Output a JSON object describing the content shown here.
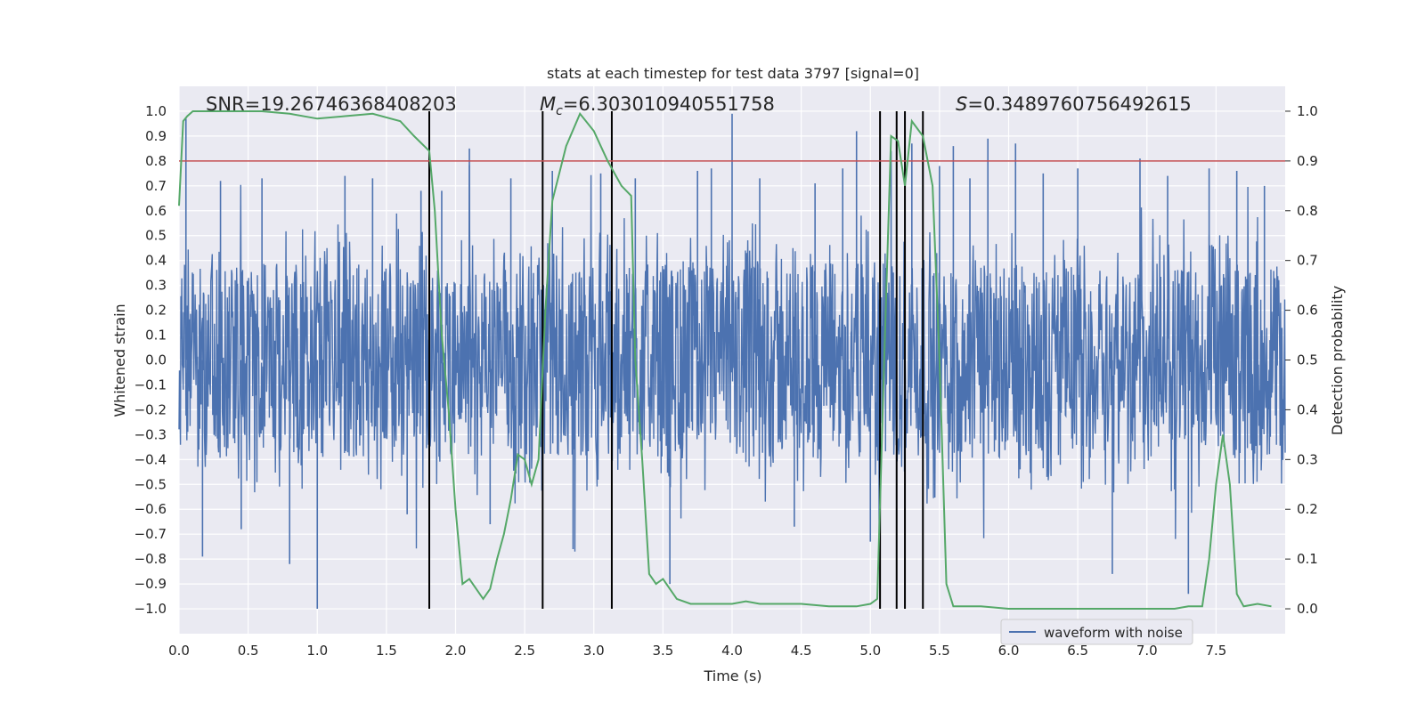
{
  "chart_data": {
    "type": "line",
    "title": "stats at each timestep for test data 3797 [signal=0]",
    "xlabel": "Time (s)",
    "ylabel_left": "Whitened strain",
    "ylabel_right": "Detection probability",
    "xlim": [
      0,
      8.0
    ],
    "ylim_left": [
      -1.1,
      1.1
    ],
    "ylim_right": [
      -0.05,
      1.05
    ],
    "x_ticks": [
      "0.0",
      "0.5",
      "1.0",
      "1.5",
      "2.0",
      "2.5",
      "3.0",
      "3.5",
      "4.0",
      "4.5",
      "5.0",
      "5.5",
      "6.0",
      "6.5",
      "7.0",
      "7.5"
    ],
    "y_ticks_left": [
      "1.0",
      "0.9",
      "0.8",
      "0.7",
      "0.6",
      "0.5",
      "0.4",
      "0.3",
      "0.2",
      "0.1",
      "0.0",
      "-0.1",
      "-0.2",
      "-0.3",
      "-0.4",
      "-0.5",
      "-0.6",
      "-0.7",
      "-0.8",
      "-0.9",
      "-1.0"
    ],
    "y_ticks_right": [
      "1.0",
      "0.9",
      "0.8",
      "0.7",
      "0.6",
      "0.5",
      "0.4",
      "0.3",
      "0.2",
      "0.1",
      "0.0"
    ],
    "annotations": {
      "snr": "SNR=19.26746368408203",
      "mc_symbol": "M",
      "mc_sub": "c",
      "mc_value": "=6.303010940551758",
      "s_symbol": "S",
      "s_value": "=0.3489760756492615"
    },
    "threshold": {
      "value": 0.9,
      "axis": "right",
      "color": "#c44e52"
    },
    "vertical_markers": [
      1.81,
      2.63,
      3.13,
      5.07,
      5.19,
      5.25,
      5.38
    ],
    "waveform": {
      "name": "waveform with noise",
      "color": "#4c72b0",
      "noise_band": 0.39,
      "peak_times": [
        0.05,
        0.17,
        0.3,
        0.45,
        0.6,
        0.8,
        1.0,
        1.2,
        1.4,
        1.65,
        1.75,
        1.9,
        2.1,
        2.25,
        2.4,
        2.7,
        2.85,
        3.05,
        3.3,
        3.55,
        3.75,
        3.85,
        4.0,
        4.2,
        4.45,
        4.6,
        4.8,
        4.9,
        5.0,
        5.15,
        5.3,
        5.5,
        5.6,
        5.72,
        5.85,
        6.05,
        6.25,
        6.5,
        6.75,
        6.95,
        7.15,
        7.3,
        7.45,
        7.65,
        7.85
      ],
      "peak_values": [
        0.97,
        -0.79,
        0.72,
        -0.68,
        0.73,
        -0.82,
        -1.0,
        0.74,
        0.73,
        -0.62,
        0.68,
        0.68,
        0.85,
        -0.66,
        0.73,
        0.76,
        -0.76,
        0.75,
        0.73,
        -0.9,
        0.76,
        0.77,
        0.99,
        0.73,
        -0.67,
        0.71,
        0.77,
        0.92,
        -0.73,
        0.84,
        0.87,
        0.78,
        0.86,
        0.73,
        0.89,
        0.87,
        0.75,
        0.77,
        -0.86,
        0.81,
        0.74,
        -0.94,
        0.77,
        0.76,
        0.7
      ]
    },
    "detection_probability": {
      "color": "#55a868",
      "x": [
        0.0,
        0.03,
        0.06,
        0.1,
        0.2,
        0.4,
        0.6,
        0.8,
        1.0,
        1.2,
        1.4,
        1.6,
        1.7,
        1.81,
        1.85,
        1.9,
        1.95,
        2.0,
        2.05,
        2.1,
        2.2,
        2.25,
        2.3,
        2.35,
        2.4,
        2.45,
        2.5,
        2.55,
        2.6,
        2.65,
        2.7,
        2.8,
        2.9,
        3.0,
        3.05,
        3.1,
        3.2,
        3.27,
        3.3,
        3.35,
        3.4,
        3.45,
        3.5,
        3.6,
        3.7,
        3.8,
        3.9,
        4.0,
        4.1,
        4.2,
        4.3,
        4.5,
        4.7,
        4.9,
        5.0,
        5.05,
        5.1,
        5.15,
        5.2,
        5.25,
        5.3,
        5.38,
        5.45,
        5.5,
        5.55,
        5.6,
        5.8,
        6.0,
        6.5,
        7.0,
        7.2,
        7.3,
        7.35,
        7.4,
        7.45,
        7.5,
        7.55,
        7.6,
        7.65,
        7.7,
        7.8,
        7.9
      ],
      "y": [
        0.81,
        0.98,
        0.99,
        1.0,
        1.0,
        1.0,
        1.0,
        0.995,
        0.985,
        0.99,
        0.995,
        0.98,
        0.95,
        0.92,
        0.8,
        0.55,
        0.4,
        0.2,
        0.05,
        0.06,
        0.02,
        0.04,
        0.1,
        0.15,
        0.22,
        0.31,
        0.3,
        0.25,
        0.3,
        0.6,
        0.82,
        0.93,
        0.995,
        0.96,
        0.93,
        0.9,
        0.85,
        0.83,
        0.5,
        0.3,
        0.07,
        0.05,
        0.06,
        0.02,
        0.01,
        0.01,
        0.01,
        0.01,
        0.015,
        0.01,
        0.01,
        0.01,
        0.005,
        0.005,
        0.01,
        0.02,
        0.5,
        0.95,
        0.94,
        0.85,
        0.98,
        0.95,
        0.85,
        0.5,
        0.05,
        0.005,
        0.005,
        0.0,
        0.0,
        0.0,
        0.0,
        0.005,
        0.005,
        0.005,
        0.1,
        0.25,
        0.35,
        0.25,
        0.03,
        0.005,
        0.01,
        0.005
      ]
    },
    "legend": {
      "label": "waveform with noise",
      "position": "lower-right"
    }
  }
}
